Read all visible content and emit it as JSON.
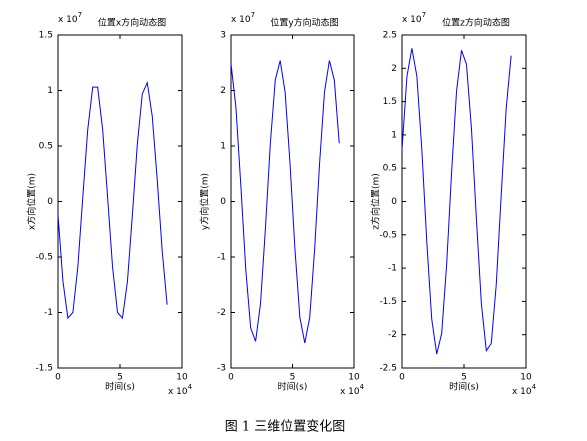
{
  "chart_data": [
    {
      "type": "line",
      "title": "位置x方向动态图",
      "y_multiplier": {
        "base": "x 10",
        "exponent": "7"
      },
      "x_multiplier": {
        "base": "x 10",
        "exponent": "4"
      },
      "x_label": "时间(s)",
      "y_label": "x方向位置(m)",
      "color": "#0000ff",
      "xlim": [
        0,
        10
      ],
      "xticks": [
        0,
        5,
        10
      ],
      "ylim": [
        -1.5,
        1.5
      ],
      "yticks": [
        -1.5,
        -1,
        -0.5,
        0,
        0.5,
        1,
        1.5
      ],
      "x": [
        0,
        0.4,
        0.8,
        1.2,
        1.6,
        2.0,
        2.4,
        2.8,
        3.2,
        3.6,
        4.0,
        4.4,
        4.8,
        5.2,
        5.6,
        6.0,
        6.4,
        6.8,
        7.2,
        7.6,
        8.0,
        8.4,
        8.8
      ],
      "values": [
        -0.12,
        -0.72,
        -1.05,
        -1.0,
        -0.59,
        0.04,
        0.65,
        1.03,
        1.03,
        0.65,
        0.04,
        -0.59,
        -1.0,
        -1.05,
        -0.72,
        -0.12,
        0.52,
        0.97,
        1.07,
        0.77,
        0.2,
        -0.44,
        -0.93
      ]
    },
    {
      "type": "line",
      "title": "位置y方向动态图",
      "y_multiplier": {
        "base": "x 10",
        "exponent": "7"
      },
      "x_multiplier": {
        "base": "x 10",
        "exponent": "4"
      },
      "x_label": "时间(s)",
      "y_label": "y方向位置(m)",
      "color": "#0000ff",
      "xlim": [
        0,
        10
      ],
      "xticks": [
        0,
        5,
        10
      ],
      "ylim": [
        -3,
        3
      ],
      "yticks": [
        -3,
        -2,
        -1,
        0,
        1,
        2,
        3
      ],
      "x": [
        0,
        0.4,
        0.8,
        1.2,
        1.6,
        2.0,
        2.4,
        2.8,
        3.2,
        3.6,
        4.0,
        4.4,
        4.8,
        5.2,
        5.6,
        6.0,
        6.4,
        6.8,
        7.2,
        7.6,
        8.0,
        8.4,
        8.8
      ],
      "values": [
        2.48,
        1.7,
        0.29,
        -1.22,
        -2.28,
        -2.52,
        -1.84,
        -0.48,
        1.05,
        2.19,
        2.54,
        1.97,
        0.68,
        -0.86,
        -2.09,
        -2.55,
        -2.09,
        -0.86,
        0.68,
        1.97,
        2.54,
        2.19,
        1.05
      ]
    },
    {
      "type": "line",
      "title": "位置z方向动态图",
      "y_multiplier": {
        "base": "x 10",
        "exponent": "7"
      },
      "x_multiplier": {
        "base": "x 10",
        "exponent": "4"
      },
      "x_label": "时间(s)",
      "y_label": "z方向位置(m)",
      "color": "#0000ff",
      "xlim": [
        0,
        10
      ],
      "xticks": [
        0,
        5,
        10
      ],
      "ylim": [
        -2.5,
        2.5
      ],
      "yticks": [
        -2.5,
        -2,
        -1.5,
        -1,
        -0.5,
        0,
        0.5,
        1,
        1.5,
        2,
        2.5
      ],
      "x": [
        0,
        0.4,
        0.8,
        1.2,
        1.6,
        2.0,
        2.4,
        2.8,
        3.2,
        3.6,
        4.0,
        4.4,
        4.8,
        5.2,
        5.6,
        6.0,
        6.4,
        6.8,
        7.2,
        7.6,
        8.0,
        8.4,
        8.8
      ],
      "values": [
        0.78,
        1.88,
        2.3,
        1.88,
        0.78,
        -0.61,
        -1.77,
        -2.29,
        -1.98,
        -0.95,
        0.44,
        1.66,
        2.27,
        2.06,
        1.1,
        -0.26,
        -1.53,
        -2.24,
        -2.13,
        -1.25,
        0.09,
        1.39,
        2.19
      ]
    }
  ],
  "caption": "图 1  三维位置变化图"
}
